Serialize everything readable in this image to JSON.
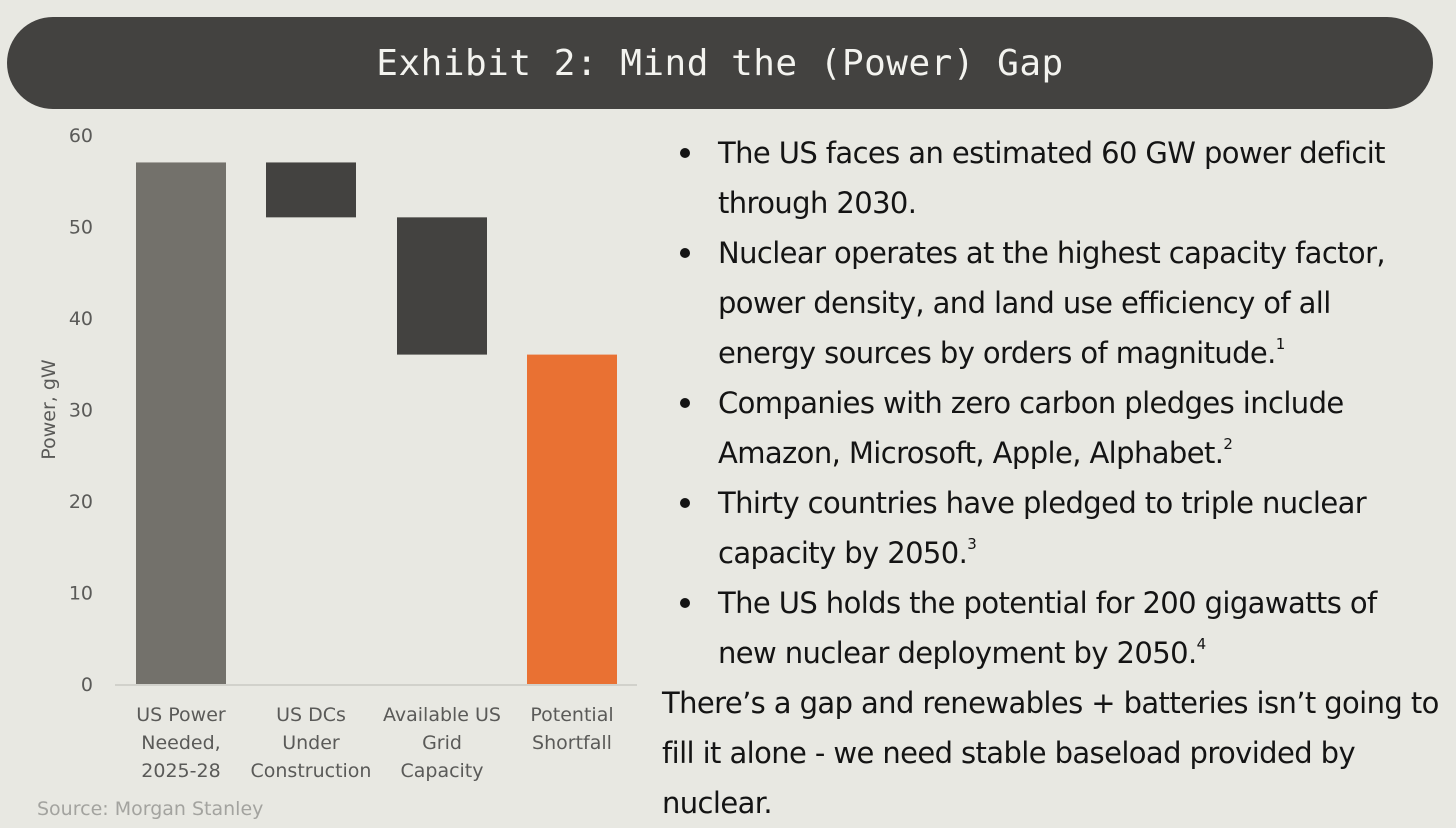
{
  "banner": {
    "title": "Exhibit 2: Mind the (Power) Gap"
  },
  "chart_data": {
    "type": "bar",
    "subtype": "waterfall",
    "ylabel": "Power, gW",
    "xlabel": "",
    "ylim": [
      0,
      60
    ],
    "yticks": [
      0,
      10,
      20,
      30,
      40,
      50,
      60
    ],
    "grid": false,
    "categories": [
      [
        "US Power",
        "Needed,",
        "2025-28"
      ],
      [
        "US DCs",
        "Under",
        "Construction"
      ],
      [
        "Available US",
        "Grid",
        "Capacity"
      ],
      [
        "Potential",
        "Shortfall"
      ]
    ],
    "bars": [
      {
        "name": "US Power Needed, 2025-28",
        "start": 0,
        "end": 57,
        "color": "#73716b"
      },
      {
        "name": "US DCs Under Construction",
        "start": 51,
        "end": 57,
        "color": "#434240"
      },
      {
        "name": "Available US Grid Capacity",
        "start": 36,
        "end": 51,
        "color": "#434240"
      },
      {
        "name": "Potential Shortfall",
        "start": 0,
        "end": 36,
        "color": "#e97133"
      }
    ]
  },
  "source": "Source: Morgan Stanley",
  "bullets": [
    {
      "text": "The US faces an estimated 60 GW power deficit through 2030.",
      "sup": ""
    },
    {
      "text": "Nuclear operates at the highest capacity factor, power density, and land use efficiency of all energy sources by orders of magnitude.",
      "sup": "1"
    },
    {
      "text": "Companies with zero carbon pledges include Amazon, Microsoft, Apple, Alphabet.",
      "sup": "2"
    },
    {
      "text": "Thirty countries have pledged to triple nuclear capacity by 2050.",
      "sup": "3"
    },
    {
      "text": "The US holds the potential for 200 gigawatts  of new nuclear deployment by 2050.",
      "sup": "4"
    }
  ],
  "closing": "There’s a gap and renewables + batteries isn’t going to fill it alone - we need stable baseload provided by nuclear."
}
